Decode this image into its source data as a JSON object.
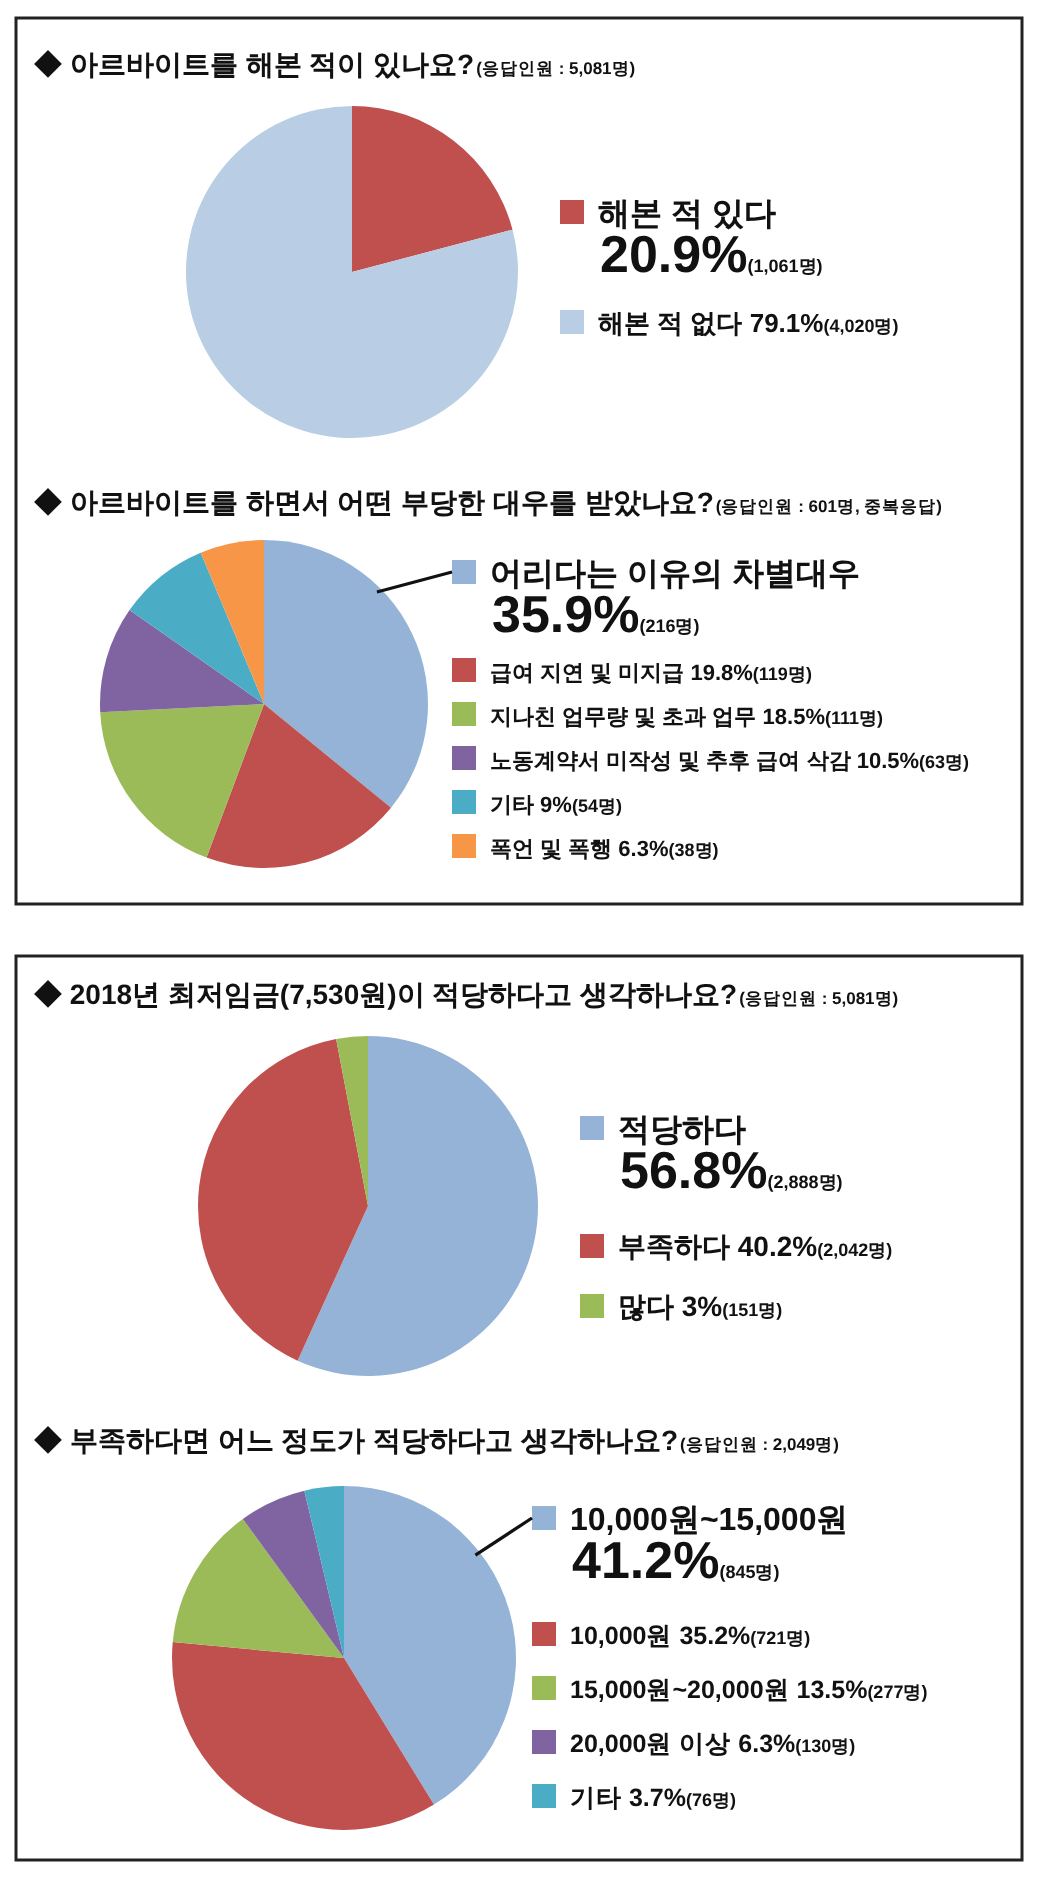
{
  "chart_data": [
    {
      "type": "pie",
      "title": "◆ 아르바이트를 해본 적이 있나요?",
      "subtitle": "(응답인원 : 5,081명)",
      "categories": [
        "해본 적 있다",
        "해본 적 없다"
      ],
      "values": [
        20.9,
        79.1
      ],
      "colors": [
        "#c0504d",
        "#b9cde5"
      ],
      "value_labels": [
        "20.9%(1,061명)",
        "79.1%(4,020명)"
      ],
      "legend": "right"
    },
    {
      "type": "pie",
      "title": "◆ 아르바이트를 하면서 어떤 부당한 대우를 받았나요?",
      "subtitle": "(응답인원 : 601명, 중복응답)",
      "categories": [
        "어리다는 이유의 차별대우",
        "급여 지연 및 미지급",
        "지나친 업무량 및 초과 업무",
        "노동계약서 미작성 및 추후 급여 삭감",
        "기타",
        "폭언 및 폭행"
      ],
      "values": [
        35.9,
        19.8,
        18.5,
        10.5,
        9,
        6.3
      ],
      "colors": [
        "#95b3d7",
        "#c0504d",
        "#9bbb59",
        "#8064a2",
        "#4bacc6",
        "#f79646"
      ],
      "value_labels": [
        "35.9%(216명)",
        "19.8%(119명)",
        "18.5%(111명)",
        "10.5%(63명)",
        "9%(54명)",
        "6.3%(38명)"
      ],
      "legend": "right"
    },
    {
      "type": "pie",
      "title": "◆ 2018년 최저임금(7,530원)이 적당하다고 생각하나요?",
      "subtitle": "(응답인원 : 5,081명)",
      "categories": [
        "적당하다",
        "부족하다",
        "많다"
      ],
      "values": [
        56.8,
        40.2,
        3
      ],
      "colors": [
        "#95b3d7",
        "#c0504d",
        "#9bbb59"
      ],
      "value_labels": [
        "56.8%(2,888명)",
        "40.2%(2,042명)",
        "3%(151명)"
      ],
      "legend": "right"
    },
    {
      "type": "pie",
      "title": "◆ 부족하다면 어느 정도가 적당하다고 생각하나요?",
      "subtitle": "(응답인원 : 2,049명)",
      "categories": [
        "10,000원~15,000원",
        "10,000원",
        "15,000원~20,000원",
        "20,000원 이상",
        "기타"
      ],
      "values": [
        41.2,
        35.2,
        13.5,
        6.3,
        3.7
      ],
      "colors": [
        "#95b3d7",
        "#c0504d",
        "#9bbb59",
        "#8064a2",
        "#4bacc6"
      ],
      "value_labels": [
        "41.2%(845명)",
        "35.2%(721명)",
        "13.5%(277명)",
        "6.3%(130명)",
        "3.7%(76명)"
      ],
      "legend": "right"
    }
  ]
}
